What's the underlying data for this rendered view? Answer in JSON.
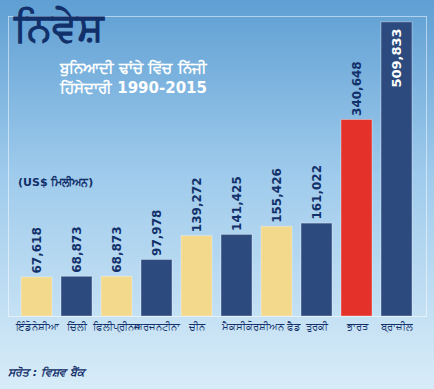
{
  "chart_data": {
    "type": "bar",
    "title": "ਨਿਵੇਸ਼",
    "subtitle": "ਬੁਨਿਆਦੀ ਢਾਂਚੇ ਵਿੱਚ ਨਿੱਜੀ ਹਿੱਸੇਦਾਰੀ 1990-2015",
    "ylabel": "(US$ ਮਿਲੀਅਨ)",
    "source": "ਸਰੋਤ : ਵਿਸ਼ਵ ਬੈਂਕ",
    "categories": [
      "ਇੰਡੋਨੇਸ਼ੀਆ",
      "ਚਿੱਲੀ",
      "ਫਿਲੀਪ੍ਰੀਨਜ",
      "ਅਰਜਨਟੀਨਾ",
      "ਚੀਨ",
      "ਮੈਕਸੀਕੋ",
      "ਰਸ਼ੀਅਨ ਫੈਡ",
      "ਤੁਰਕੀ",
      "ਭਾਰਤ",
      "ਬ੍ਰਾਜ਼ੀਲ"
    ],
    "values": [
      67618,
      68873,
      68873,
      97978,
      139272,
      141425,
      155426,
      161022,
      340648,
      509833
    ],
    "value_labels": [
      "67,618",
      "68,873",
      "68,873",
      "97,978",
      "139,272",
      "141,425",
      "155,426",
      "161,022",
      "340,648",
      "509,833"
    ],
    "colors": [
      "#f2d98c",
      "#2d4a7e",
      "#f2d98c",
      "#2d4a7e",
      "#f2d98c",
      "#2d4a7e",
      "#f2d98c",
      "#2d4a7e",
      "#e4322b",
      "#2d4a7e"
    ],
    "ylim": [
      0,
      520000
    ],
    "data_labels": true,
    "tick_labels": "x",
    "grid": false
  }
}
